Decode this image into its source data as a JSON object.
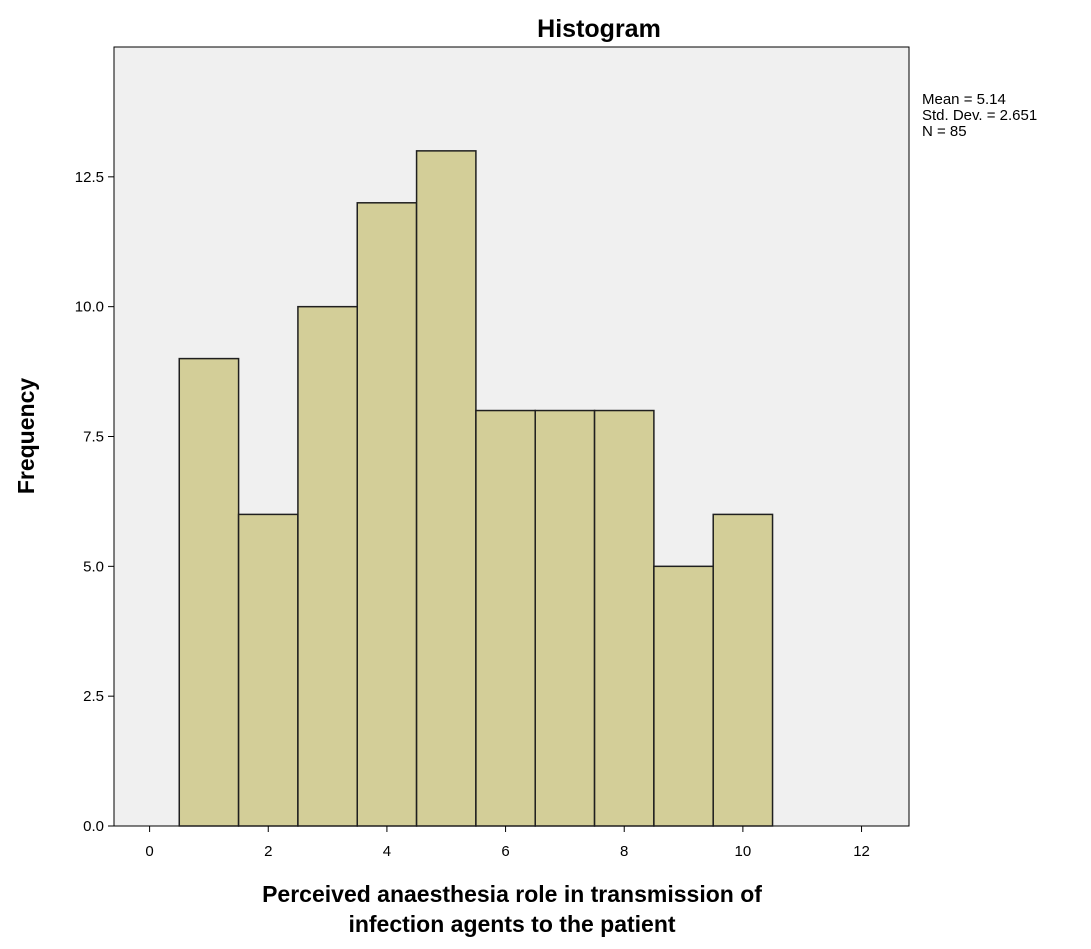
{
  "chart_data": {
    "type": "bar",
    "title": "Histogram",
    "xlabel_lines": [
      "Perceived anaesthesia role in transmission of",
      "infection agents to the patient"
    ],
    "ylabel": "Frequency",
    "bins": [
      {
        "center": 1,
        "value": 9
      },
      {
        "center": 2,
        "value": 6
      },
      {
        "center": 3,
        "value": 10
      },
      {
        "center": 4,
        "value": 12
      },
      {
        "center": 5,
        "value": 13
      },
      {
        "center": 6,
        "value": 8
      },
      {
        "center": 7,
        "value": 8
      },
      {
        "center": 8,
        "value": 8
      },
      {
        "center": 9,
        "value": 5
      },
      {
        "center": 10,
        "value": 6
      }
    ],
    "bin_width": 1,
    "xlim": [
      -0.6,
      12.8
    ],
    "ylim": [
      0,
      15
    ],
    "x_ticks": [
      0,
      2,
      4,
      6,
      8,
      10,
      12
    ],
    "y_ticks": [
      "0.0",
      "2.5",
      "5.0",
      "7.5",
      "10.0",
      "12.5"
    ],
    "grid": false,
    "colors": {
      "bar_fill": "#d3ce98",
      "bar_stroke": "#1f1f1f",
      "plot_bg": "#f0f0f0"
    }
  },
  "stats": {
    "mean": "Mean = 5.14",
    "std": "Std. Dev. = 2.651",
    "n": "N = 85"
  }
}
